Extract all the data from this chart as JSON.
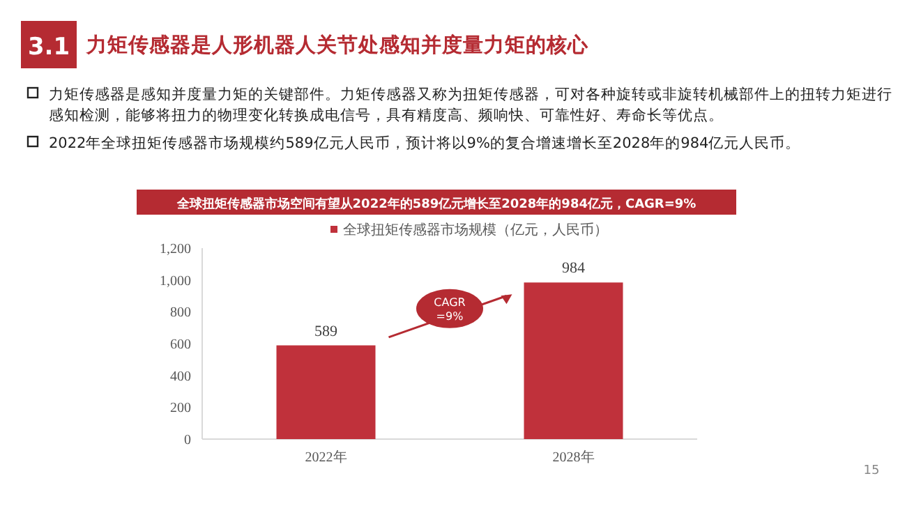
{
  "chart_data": {
    "type": "bar",
    "title": "力矩传感器是人形机器人关节处感知并度量力矩的核心",
    "subtitle": "全球扭矩传感器市场空间有望从2022年的589亿元增长至2028年的984亿元，CAGR=9%",
    "annotations": [
      "3.1",
      "力矩传感器是感知并度量力矩的关键部件。力矩传感器又称为扭矩传感器，可对各种旋转或非旋转机械部件上的扭转力矩进行感知检测，能够将扭力的物理变化转换成电信号，具有精度高、频响快、可靠性好、寿命长等优点。",
      "2022年全球扭矩传感器市场规模约589亿元人民币，预计将以9%的复合增速增长至2028年的984亿元人民币。",
      "CAGR =9%",
      "15"
    ],
    "categories": [
      "2022年",
      "2028年"
    ],
    "series": [
      {
        "name": "全球扭矩传感器市场规模（亿元，人民币）",
        "color": "#c0313b",
        "values": [
          589,
          984
        ]
      }
    ],
    "ylim": [
      0,
      1200
    ],
    "yticks": [
      0,
      {
        "value": 200,
        "label": "200"
      },
      {
        "value": 400,
        "label": "400"
      },
      {
        "value": 600,
        "label": "600"
      },
      {
        "value": 800,
        "label": "800"
      },
      {
        "value": 1000,
        "label": "1,000"
      },
      {
        "value": 1200,
        "label": "1,200"
      }
    ],
    "data_labels": true,
    "legend": "top",
    "grid": false
  }
}
